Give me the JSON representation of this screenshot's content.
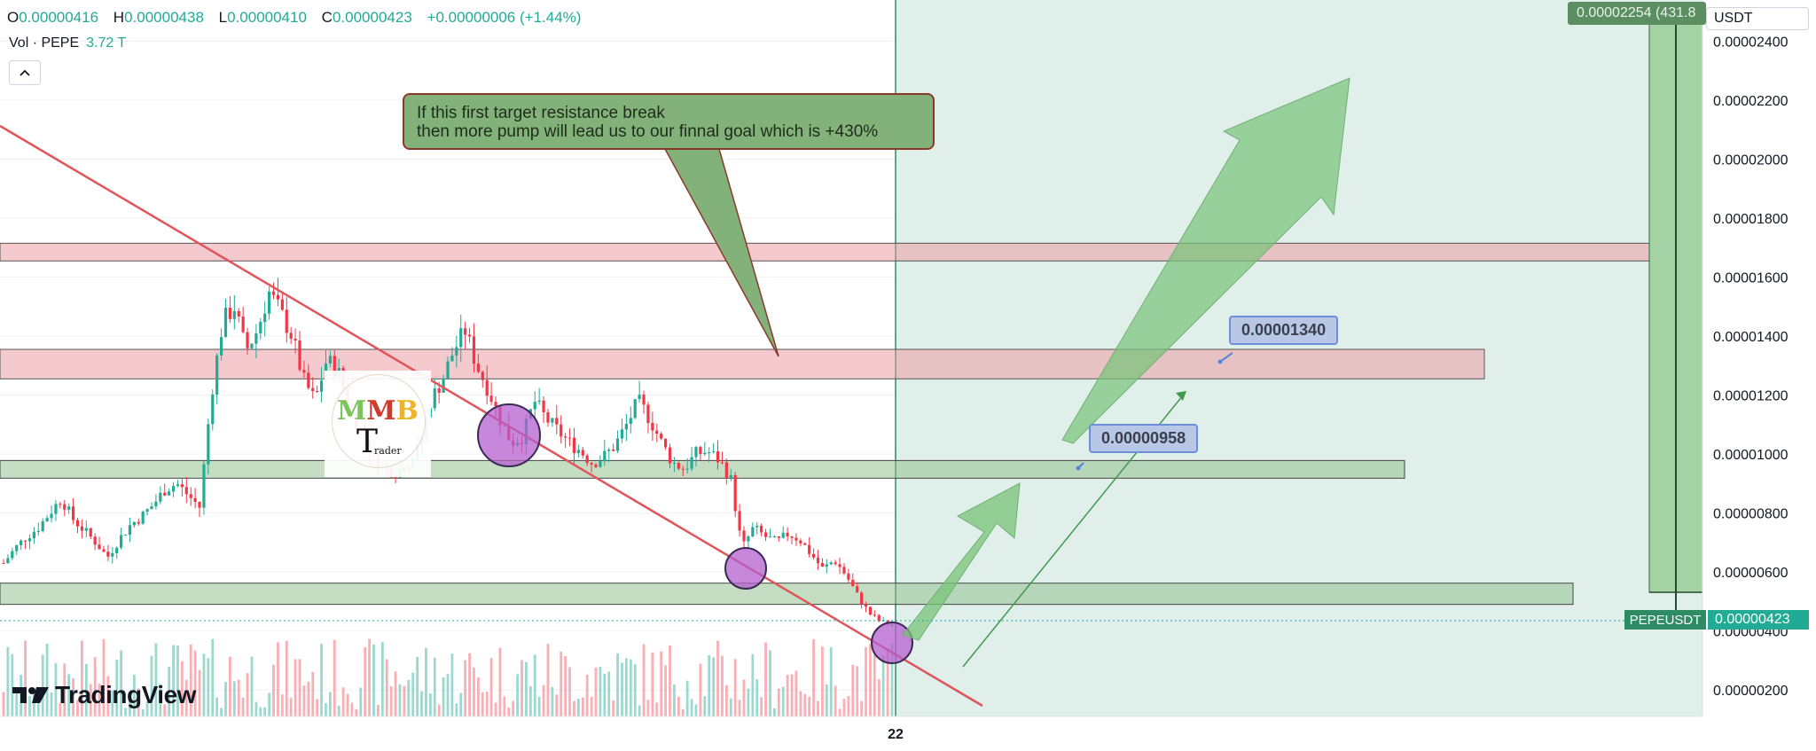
{
  "header": {
    "open_key": "O",
    "open": "0.00000416",
    "high_key": "H",
    "high": "0.00000438",
    "low_key": "L",
    "low": "0.00000410",
    "close_key": "C",
    "close": "0.00000423",
    "change": "+0.00000006 (+1.44%)",
    "vol_label": "Vol · PEPE",
    "vol_value": "3.72 T",
    "collapse_icon": "chevron-up-icon"
  },
  "currency": "USDT",
  "annotation": {
    "line1": "If this first target resistance break",
    "line2": "then more pump will lead us to our finnal goal which is +430%"
  },
  "price_labels": {
    "target1": "0.00000958",
    "target2": "0.00001340"
  },
  "top_label": "0.00002254 (431.8",
  "symbol_tag": "PEPEUSDT",
  "last_price": "0.00000423",
  "logo_text": "TradingView",
  "watermark": {
    "letters": [
      "M",
      "M",
      "B"
    ],
    "main": "T",
    "sub": "rader"
  },
  "colors": {
    "up": "#22ab94",
    "down": "#f23645",
    "resistance_zone": "#f3c4c8",
    "support_zone": "#cfe3cc",
    "projection_bg": "#e1efea",
    "arrow": "#86c38a",
    "trendline": "#e0555a",
    "circle": "#b36bcf"
  },
  "chart_data": {
    "type": "candlestick",
    "yaxis_ticks": [
      "0.00002400",
      "0.00002200",
      "0.00002000",
      "0.00001800",
      "0.00001600",
      "0.00001400",
      "0.00001200",
      "0.00001000",
      "0.00000800",
      "0.00000600",
      "0.00000400",
      "0.00000200"
    ],
    "ylim": [
      1.1e-06,
      2.54e-05
    ],
    "xaxis_ticks": [
      "22"
    ],
    "resistance_zones": [
      [
        1.655e-05,
        1.715e-05
      ],
      [
        1.255e-05,
        1.355e-05
      ]
    ],
    "support_zones": [
      [
        9.18e-06,
        9.78e-06
      ],
      [
        4.9e-06,
        5.62e-06
      ]
    ],
    "targets": [
      9.58e-06,
      1.34e-05
    ],
    "series_close": [
      6.3e-06,
      6.8e-06,
      7.2e-06,
      7.5e-06,
      8e-06,
      8.5e-06,
      7.8e-06,
      7.4e-06,
      7e-06,
      6.5e-06,
      7.1e-06,
      7.6e-06,
      7.9e-06,
      8.3e-06,
      8.8e-06,
      9e-06,
      8.6e-06,
      8.2e-06,
      1.2e-05,
      1.45e-05,
      1.5e-05,
      1.35e-05,
      1.42e-05,
      1.55e-05,
      1.48e-05,
      1.4e-05,
      1.25e-05,
      1.18e-05,
      1.32e-05,
      1.28e-05,
      1.15e-05,
      1.08e-05,
      1e-05,
      9.5e-06,
      9.4e-06,
      9.7e-06,
      1.02e-05,
      1.18e-05,
      1.25e-05,
      1.35e-05,
      1.42e-05,
      1.3e-05,
      1.22e-05,
      1.12e-05,
      1.04e-05,
      1.06e-05,
      1.18e-05,
      1.12e-05,
      1.08e-05,
      1.04e-05,
      1.01e-05,
      9.7e-06,
      9.9e-06,
      1.03e-05,
      1.1e-05,
      1.18e-05,
      1.12e-05,
      1.04e-05,
      9.7e-06,
      9.5e-06,
      1e-05,
      1.01e-05,
      9.8e-06,
      9.2e-06,
      6.8e-06,
      7.5e-06,
      7.2e-06,
      7e-06,
      7.3e-06,
      7.1e-06,
      6.6e-06,
      6.1e-06,
      6.4e-06,
      5.9e-06,
      5.2e-06,
      4.6e-06,
      4.3e-06,
      4.23e-06
    ]
  }
}
